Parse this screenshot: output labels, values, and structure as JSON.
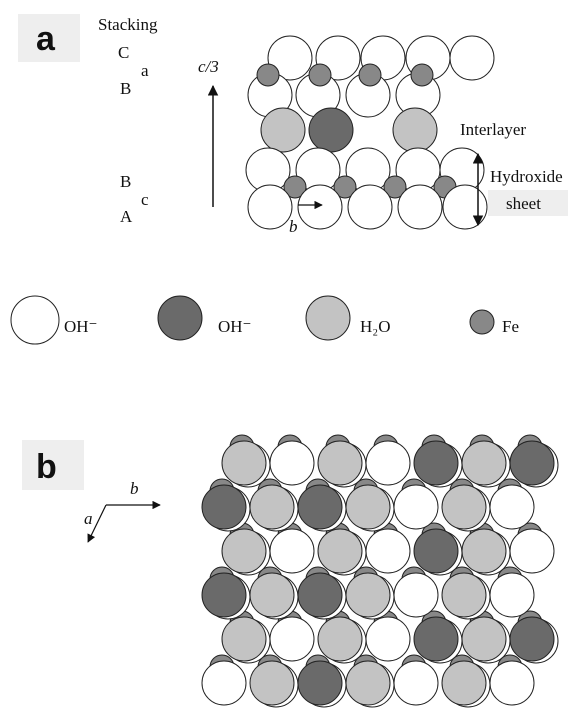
{
  "panel_a": {
    "label": "a",
    "stacking_title": "Stacking",
    "stacking": [
      "C",
      "a",
      "B",
      "B",
      "c",
      "A"
    ],
    "axis_label": "c/3",
    "interlayer": "Interlayer",
    "hydroxide": "Hydroxide",
    "sheet": "sheet",
    "b_axis": "b"
  },
  "legend": [
    {
      "label": "OH⁻"
    },
    {
      "label": "OH⁻"
    },
    {
      "label": "H₂O"
    },
    {
      "label": "Fe"
    }
  ],
  "panel_b": {
    "label": "b",
    "b_axis": "b",
    "a_axis": "a"
  }
}
